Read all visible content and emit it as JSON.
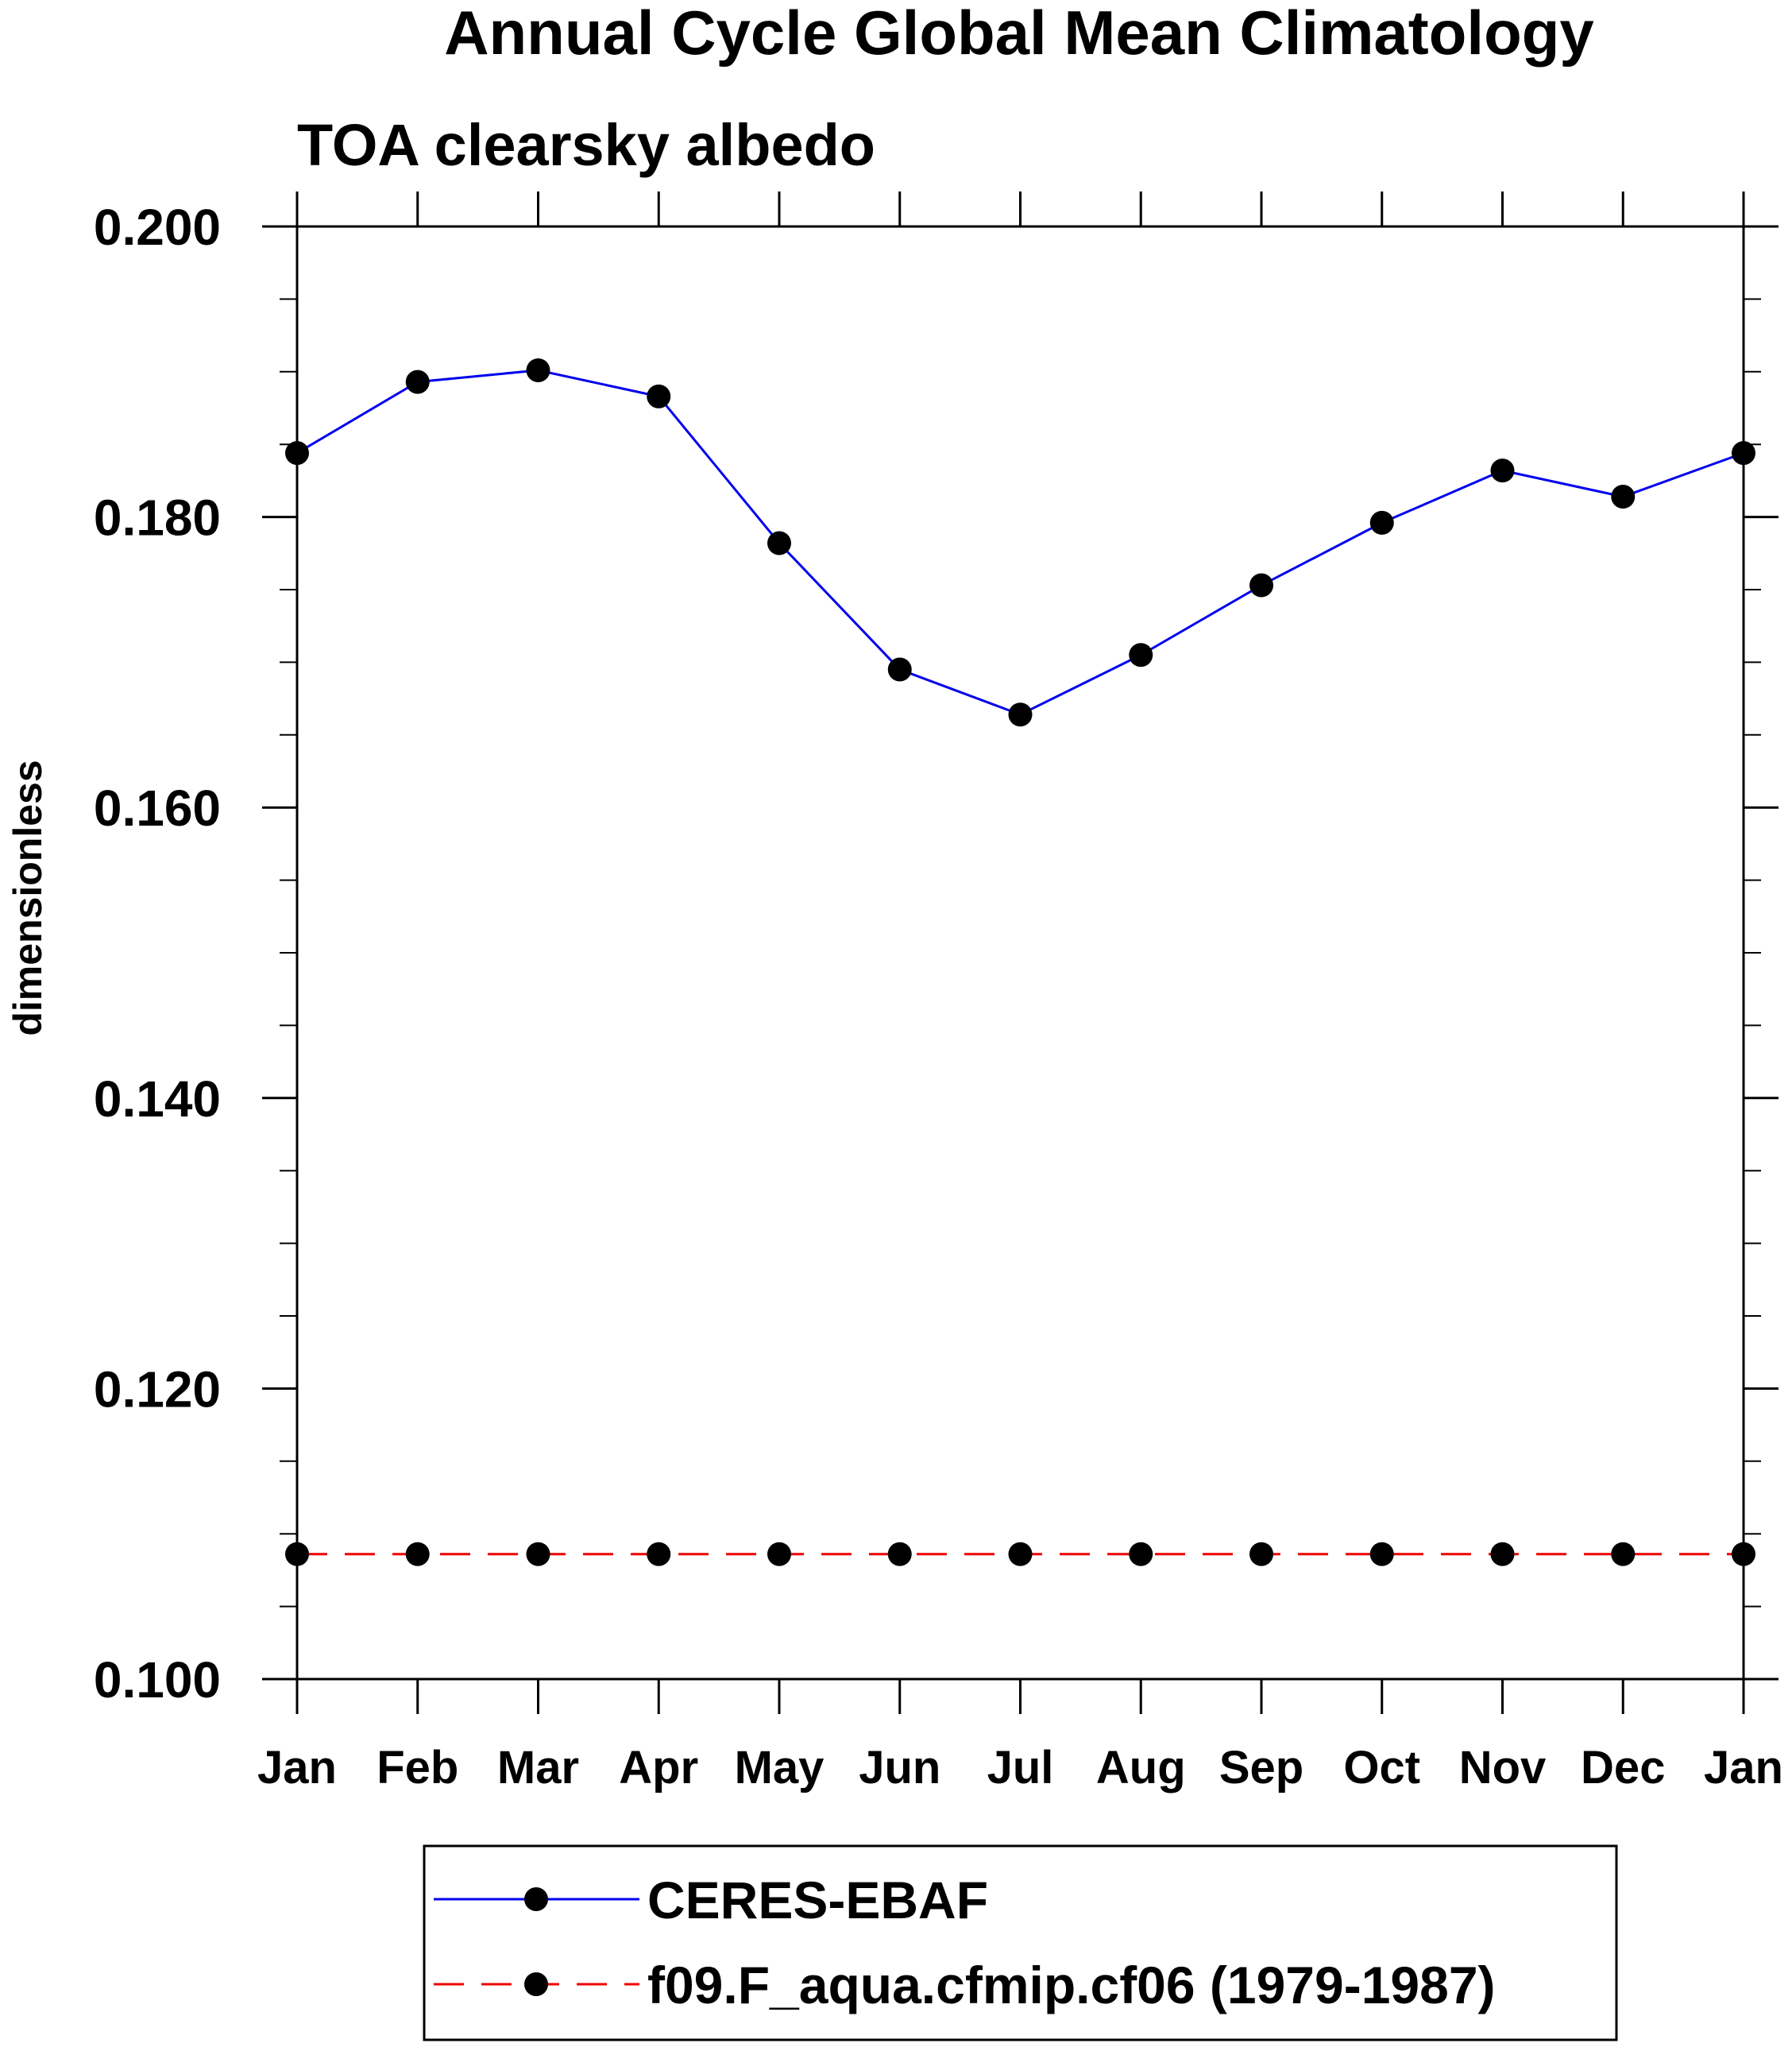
{
  "chart_data": {
    "type": "line",
    "title": "Annual Cycle Global Mean Climatology",
    "subtitle": "TOA clearsky albedo",
    "xlabel": "",
    "ylabel": "dimensionless",
    "categories": [
      "Jan",
      "Feb",
      "Mar",
      "Apr",
      "May",
      "Jun",
      "Jul",
      "Aug",
      "Sep",
      "Oct",
      "Nov",
      "Dec",
      "Jan"
    ],
    "ylim": [
      0.1,
      0.2
    ],
    "yticks": [
      "0.100",
      "0.120",
      "0.140",
      "0.160",
      "0.180",
      "0.200"
    ],
    "grid": false,
    "legend_position": "bottom",
    "series": [
      {
        "name": "CERES-EBAF",
        "color": "#0000ee",
        "line_style": "solid",
        "marker": "circle",
        "values": [
          0.1844,
          0.1893,
          0.1901,
          0.1883,
          0.1782,
          0.1695,
          0.1664,
          0.1705,
          0.1753,
          0.1796,
          0.1832,
          0.1814,
          0.1844
        ]
      },
      {
        "name": "f09.F_aqua.cfmip.cf06 (1979-1987)",
        "color": "#ee0000",
        "line_style": "dashed",
        "marker": "circle",
        "values": [
          0.1086,
          0.1086,
          0.1086,
          0.1086,
          0.1086,
          0.1086,
          0.1086,
          0.1086,
          0.1086,
          0.1086,
          0.1086,
          0.1086,
          0.1086
        ]
      }
    ]
  }
}
